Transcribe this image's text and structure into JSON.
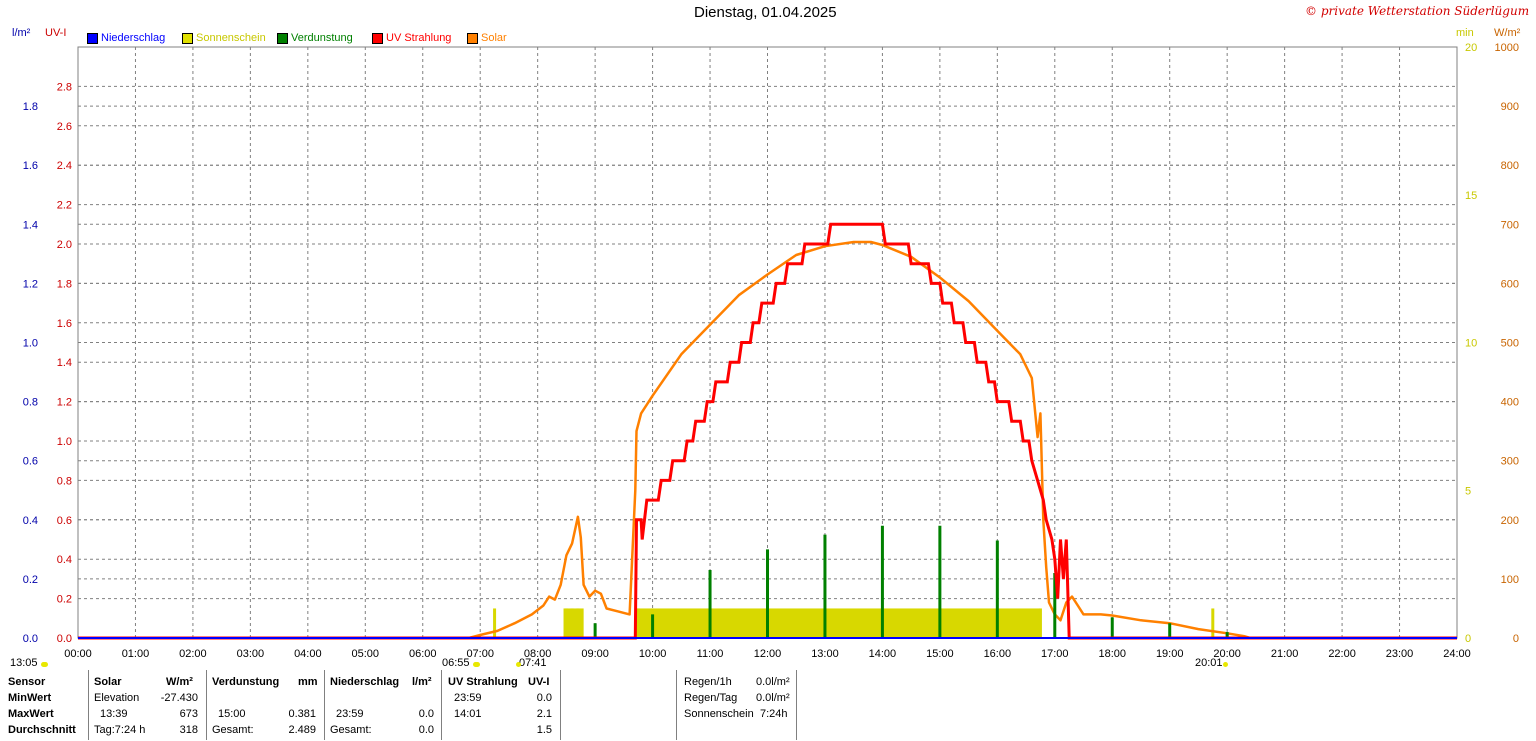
{
  "title": "Dienstag, 01.04.2025",
  "watermark": "© private Wetterstation Süderlügum",
  "left_axis_units": {
    "precip": "l/m²",
    "uv": "UV-I"
  },
  "right_axis_units": {
    "sun": "min",
    "solar": "W/m²"
  },
  "legend": [
    {
      "label": "Niederschlag",
      "color": "#0000ff"
    },
    {
      "label": "Sonnenschein",
      "color": "#e0e000"
    },
    {
      "label": "Verdunstung",
      "color": "#008000"
    },
    {
      "label": "UV Strahlung",
      "color": "#ff0000"
    },
    {
      "label": "Solar",
      "color": "#ff8000"
    }
  ],
  "colors": {
    "uv": "#ff0000",
    "solar": "#ff8000",
    "sun": "#d8d800",
    "evap": "#008000",
    "precip": "#0000ff",
    "grid": "#808080",
    "axis_blue": "#0000aa",
    "axis_red": "#cc0000",
    "axis_yellow": "#c8c800",
    "axis_orange": "#c86400"
  },
  "axis_ticks": {
    "precip": [
      "0.0",
      "0.2",
      "0.4",
      "0.6",
      "0.8",
      "1.0",
      "1.2",
      "1.4",
      "1.6",
      "1.8"
    ],
    "uv": [
      "0.0",
      "0.2",
      "0.4",
      "0.6",
      "0.8",
      "1.0",
      "1.2",
      "1.4",
      "1.6",
      "1.8",
      "2.0",
      "2.2",
      "2.4",
      "2.6",
      "2.8"
    ],
    "sun": [
      "0",
      "5",
      "10",
      "15",
      "20"
    ],
    "solar": [
      "0",
      "100",
      "200",
      "300",
      "400",
      "500",
      "600",
      "700",
      "800",
      "900",
      "1000"
    ],
    "time": [
      "00:00",
      "01:00",
      "02:00",
      "03:00",
      "04:00",
      "05:00",
      "06:00",
      "07:00",
      "08:00",
      "09:00",
      "10:00",
      "11:00",
      "12:00",
      "13:00",
      "14:00",
      "15:00",
      "16:00",
      "17:00",
      "18:00",
      "19:00",
      "20:00",
      "21:00",
      "22:00",
      "23:00",
      "24:00"
    ]
  },
  "sun_events": {
    "left": "13:05",
    "rise": "06:55",
    "transit": "07:41",
    "set": "20:01"
  },
  "table": {
    "headers": [
      "Sensor",
      "Solar",
      "W/m²",
      "Verdunstung",
      "mm",
      "Niederschlag",
      "l/m²",
      "UV Strahlung",
      "UV-I"
    ],
    "rows": [
      {
        "label": "MinWert",
        "solar_t": "Elevation",
        "solar_v": "-27.430",
        "evap_t": "",
        "evap_v": "",
        "rain_t": "",
        "rain_v": "",
        "uv_t": "23:59",
        "uv_v": "0.0"
      },
      {
        "label": "MaxWert",
        "solar_t": "13:39",
        "solar_v": "673",
        "evap_t": "15:00",
        "evap_v": "0.381",
        "rain_t": "23:59",
        "rain_v": "0.0",
        "uv_t": "14:01",
        "uv_v": "2.1"
      },
      {
        "label": "Durchschnitt",
        "solar_t": "Tag:7:24 h",
        "solar_v": "318",
        "evap_t": "Gesamt:",
        "evap_v": "2.489",
        "rain_t": "Gesamt:",
        "rain_v": "0.0",
        "uv_t": "",
        "uv_v": "1.5"
      }
    ],
    "summary": [
      {
        "label": "Regen/1h",
        "value": "0.0l/m²"
      },
      {
        "label": "Regen/Tag",
        "value": "0.0l/m²"
      },
      {
        "label": "Sonnenschein",
        "value": "7:24h"
      }
    ]
  },
  "chart_data": {
    "type": "line",
    "xlabel": "",
    "xlim_hours": [
      0,
      24
    ],
    "ylim": {
      "uv": [
        0,
        3.0
      ],
      "precip": [
        0,
        2.0
      ],
      "solar": [
        0,
        1000
      ],
      "sun": [
        0,
        20
      ]
    },
    "grid": true,
    "legend_position": "top-left",
    "series": [
      {
        "name": "UV Strahlung",
        "axis": "uv",
        "kind": "step",
        "points": [
          [
            0,
            0
          ],
          [
            9.7,
            0
          ],
          [
            9.72,
            0.6
          ],
          [
            9.8,
            0.6
          ],
          [
            9.82,
            0.5
          ],
          [
            9.9,
            0.7
          ],
          [
            10.1,
            0.7
          ],
          [
            10.15,
            0.8
          ],
          [
            10.3,
            0.8
          ],
          [
            10.35,
            0.9
          ],
          [
            10.55,
            0.9
          ],
          [
            10.6,
            1.0
          ],
          [
            10.7,
            1.0
          ],
          [
            10.75,
            1.1
          ],
          [
            10.9,
            1.1
          ],
          [
            10.95,
            1.2
          ],
          [
            11.05,
            1.2
          ],
          [
            11.1,
            1.3
          ],
          [
            11.3,
            1.3
          ],
          [
            11.35,
            1.4
          ],
          [
            11.5,
            1.4
          ],
          [
            11.55,
            1.5
          ],
          [
            11.7,
            1.5
          ],
          [
            11.75,
            1.6
          ],
          [
            11.85,
            1.6
          ],
          [
            11.9,
            1.7
          ],
          [
            12.1,
            1.7
          ],
          [
            12.15,
            1.8
          ],
          [
            12.3,
            1.8
          ],
          [
            12.35,
            1.9
          ],
          [
            12.6,
            1.9
          ],
          [
            12.65,
            2.0
          ],
          [
            13.05,
            2.0
          ],
          [
            13.1,
            2.1
          ],
          [
            14.0,
            2.1
          ],
          [
            14.05,
            2.0
          ],
          [
            14.45,
            2.0
          ],
          [
            14.5,
            1.9
          ],
          [
            14.8,
            1.9
          ],
          [
            14.85,
            1.8
          ],
          [
            15.0,
            1.8
          ],
          [
            15.05,
            1.7
          ],
          [
            15.2,
            1.7
          ],
          [
            15.25,
            1.6
          ],
          [
            15.4,
            1.6
          ],
          [
            15.45,
            1.5
          ],
          [
            15.6,
            1.5
          ],
          [
            15.65,
            1.4
          ],
          [
            15.8,
            1.4
          ],
          [
            15.85,
            1.3
          ],
          [
            15.95,
            1.3
          ],
          [
            16.0,
            1.2
          ],
          [
            16.2,
            1.2
          ],
          [
            16.25,
            1.1
          ],
          [
            16.4,
            1.1
          ],
          [
            16.45,
            1.0
          ],
          [
            16.55,
            1.0
          ],
          [
            16.6,
            0.9
          ],
          [
            16.7,
            0.8
          ],
          [
            16.8,
            0.7
          ],
          [
            16.85,
            0.6
          ],
          [
            16.95,
            0.5
          ],
          [
            17.0,
            0.4
          ],
          [
            17.05,
            0.2
          ],
          [
            17.1,
            0.5
          ],
          [
            17.15,
            0.3
          ],
          [
            17.2,
            0.5
          ],
          [
            17.25,
            0.0
          ],
          [
            24,
            0
          ]
        ]
      },
      {
        "name": "Solar",
        "axis": "solar",
        "kind": "line",
        "points": [
          [
            0,
            0
          ],
          [
            6.8,
            0
          ],
          [
            7.0,
            5
          ],
          [
            7.3,
            12
          ],
          [
            7.6,
            25
          ],
          [
            7.9,
            40
          ],
          [
            8.1,
            55
          ],
          [
            8.2,
            70
          ],
          [
            8.3,
            65
          ],
          [
            8.4,
            90
          ],
          [
            8.5,
            140
          ],
          [
            8.6,
            160
          ],
          [
            8.7,
            205
          ],
          [
            8.75,
            170
          ],
          [
            8.8,
            90
          ],
          [
            8.9,
            70
          ],
          [
            9.0,
            80
          ],
          [
            9.1,
            75
          ],
          [
            9.2,
            50
          ],
          [
            9.4,
            45
          ],
          [
            9.6,
            40
          ],
          [
            9.7,
            250
          ],
          [
            9.72,
            350
          ],
          [
            9.8,
            380
          ],
          [
            10.0,
            410
          ],
          [
            10.5,
            480
          ],
          [
            11.0,
            530
          ],
          [
            11.5,
            580
          ],
          [
            12.0,
            615
          ],
          [
            12.5,
            648
          ],
          [
            13.0,
            663
          ],
          [
            13.5,
            670
          ],
          [
            13.8,
            670
          ],
          [
            14.0,
            665
          ],
          [
            14.5,
            645
          ],
          [
            15.0,
            610
          ],
          [
            15.5,
            570
          ],
          [
            16.0,
            520
          ],
          [
            16.4,
            480
          ],
          [
            16.6,
            440
          ],
          [
            16.7,
            340
          ],
          [
            16.75,
            380
          ],
          [
            16.8,
            200
          ],
          [
            16.85,
            120
          ],
          [
            16.9,
            60
          ],
          [
            17.0,
            40
          ],
          [
            17.1,
            30
          ],
          [
            17.2,
            60
          ],
          [
            17.3,
            70
          ],
          [
            17.4,
            55
          ],
          [
            17.5,
            40
          ],
          [
            17.8,
            40
          ],
          [
            18.0,
            38
          ],
          [
            18.5,
            30
          ],
          [
            19.0,
            25
          ],
          [
            19.5,
            15
          ],
          [
            20.0,
            8
          ],
          [
            20.3,
            3
          ],
          [
            20.4,
            0
          ],
          [
            24,
            0
          ]
        ]
      },
      {
        "name": "Sonnenschein",
        "axis": "sun",
        "kind": "bar",
        "points": [
          [
            7.25,
            1.0
          ],
          [
            8.5,
            1.0
          ],
          [
            8.6,
            1.0
          ],
          [
            8.7,
            1.0
          ],
          [
            9.75,
            1.0
          ],
          [
            10.0,
            1.0
          ],
          [
            11.0,
            1.0
          ],
          [
            12.0,
            1.0
          ],
          [
            13.0,
            1.0
          ],
          [
            14.0,
            1.0
          ],
          [
            15.0,
            1.0
          ],
          [
            16.0,
            1.0
          ],
          [
            16.75,
            1.0
          ],
          [
            19.75,
            1.0
          ],
          [
            20.0,
            0.2
          ]
        ],
        "blocks": [
          [
            8.45,
            8.8,
            1.0
          ],
          [
            9.7,
            16.75,
            1.0
          ]
        ]
      },
      {
        "name": "Verdunstung",
        "axis": "sun",
        "kind": "bar",
        "points": [
          [
            9.0,
            0.5
          ],
          [
            10.0,
            0.8
          ],
          [
            11.0,
            2.3
          ],
          [
            12.0,
            3.0
          ],
          [
            13.0,
            3.5
          ],
          [
            14.0,
            3.8
          ],
          [
            15.0,
            3.8
          ],
          [
            16.0,
            3.3
          ],
          [
            17.0,
            2.2
          ],
          [
            18.0,
            0.7
          ],
          [
            19.0,
            0.5
          ],
          [
            20.0,
            0.2
          ]
        ]
      },
      {
        "name": "Niederschlag",
        "axis": "precip",
        "kind": "bar",
        "points": []
      }
    ]
  }
}
